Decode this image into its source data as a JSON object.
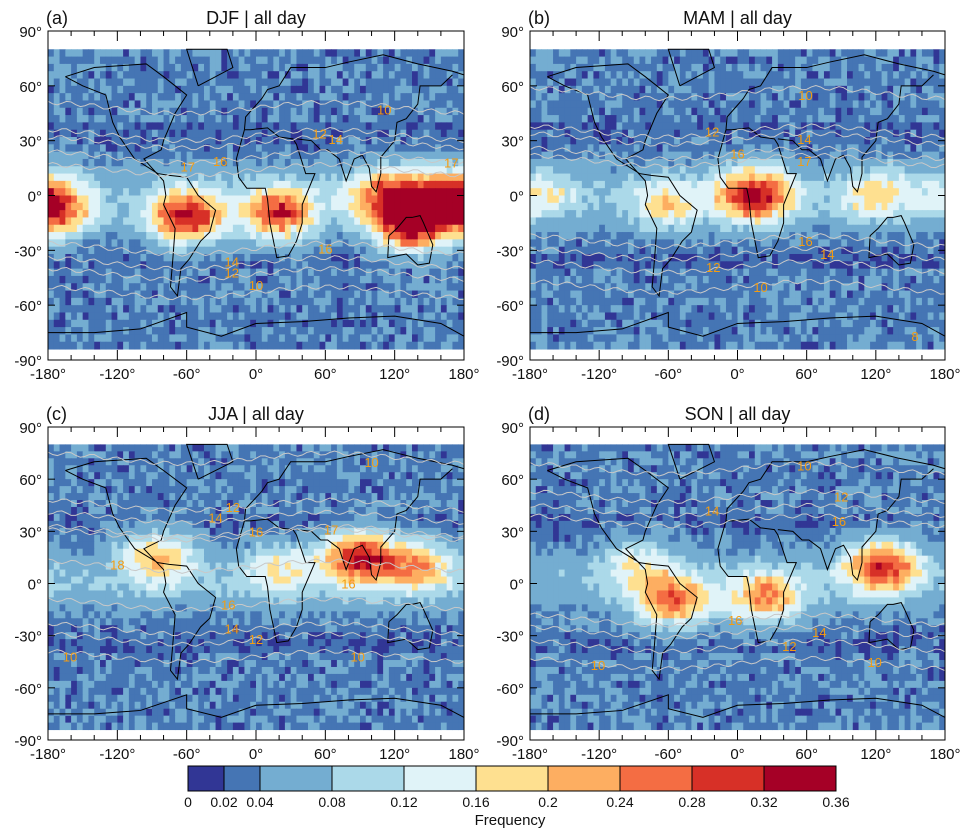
{
  "panels": [
    {
      "letter": "(a)",
      "title": "DJF | all day",
      "hotspots": [
        [
          -60,
          -12,
          0.3
        ],
        [
          20,
          -10,
          0.25
        ],
        [
          135,
          -15,
          0.34
        ],
        [
          -172,
          -8,
          0.22
        ],
        [
          160,
          0,
          0.22
        ],
        [
          110,
          0,
          0.2
        ]
      ],
      "contours": [
        [
          10,
          48
        ],
        [
          12,
          33
        ],
        [
          14,
          29
        ],
        [
          16,
          21
        ],
        [
          17,
          14
        ],
        [
          16,
          -29
        ],
        [
          14,
          -37
        ],
        [
          12,
          -43
        ],
        [
          10,
          -53
        ]
      ],
      "labels": [
        [
          "10",
          111,
          47
        ],
        [
          "12",
          55,
          34
        ],
        [
          "14",
          69,
          31
        ],
        [
          "16",
          -31,
          19
        ],
        [
          "17",
          -59,
          16
        ],
        [
          "17",
          169,
          18
        ],
        [
          "16",
          60,
          -29
        ],
        [
          "14",
          -21,
          -36
        ],
        [
          "12",
          -21,
          -42
        ],
        [
          "10",
          0,
          -49
        ]
      ]
    },
    {
      "letter": "(b)",
      "title": "MAM | all day",
      "hotspots": [
        [
          15,
          0,
          0.3
        ],
        [
          -60,
          -5,
          0.13
        ],
        [
          120,
          0,
          0.13
        ],
        [
          -170,
          0,
          0.1
        ]
      ],
      "contours": [
        [
          10,
          56
        ],
        [
          12,
          35
        ],
        [
          14,
          31
        ],
        [
          16,
          23
        ],
        [
          17,
          19
        ],
        [
          16,
          -25
        ],
        [
          14,
          -32
        ],
        [
          12,
          -39
        ],
        [
          10,
          -50
        ]
      ],
      "labels": [
        [
          "10",
          59,
          55
        ],
        [
          "12",
          -22,
          35
        ],
        [
          "14",
          58,
          31
        ],
        [
          "16",
          0,
          23
        ],
        [
          "17",
          58,
          19
        ],
        [
          "16",
          59,
          -25
        ],
        [
          "14",
          78,
          -32
        ],
        [
          "12",
          -21,
          -39
        ],
        [
          "10",
          20,
          -50
        ],
        [
          "8",
          154,
          -77
        ]
      ]
    },
    {
      "letter": "(c)",
      "title": "JJA | all day",
      "hotspots": [
        [
          90,
          15,
          0.3
        ],
        [
          -85,
          15,
          0.18
        ],
        [
          20,
          8,
          0.12
        ],
        [
          140,
          10,
          0.18
        ]
      ],
      "contours": [
        [
          10,
          72
        ],
        [
          12,
          45
        ],
        [
          14,
          38
        ],
        [
          16,
          30
        ],
        [
          17,
          28
        ],
        [
          18,
          10
        ],
        [
          16,
          -12
        ],
        [
          14,
          -26
        ],
        [
          12,
          -32
        ],
        [
          10,
          -42
        ]
      ],
      "labels": [
        [
          "10",
          100,
          70
        ],
        [
          "12",
          -20,
          44
        ],
        [
          "14",
          -35,
          38
        ],
        [
          "16",
          0,
          30
        ],
        [
          "17",
          65,
          31
        ],
        [
          "16",
          80,
          0
        ],
        [
          "18",
          -120,
          11
        ],
        [
          "16",
          -24,
          -12
        ],
        [
          "14",
          -21,
          -26
        ],
        [
          "12",
          0,
          -32
        ],
        [
          "10",
          88,
          -42
        ],
        [
          "10",
          -161,
          -42
        ]
      ]
    },
    {
      "letter": "(d)",
      "title": "SON | all day",
      "hotspots": [
        [
          -55,
          -10,
          0.22
        ],
        [
          25,
          -8,
          0.2
        ],
        [
          125,
          10,
          0.28
        ],
        [
          -85,
          10,
          0.12
        ]
      ],
      "contours": [
        [
          10,
          66
        ],
        [
          12,
          50
        ],
        [
          14,
          42
        ],
        [
          16,
          36
        ],
        [
          16,
          -21
        ],
        [
          14,
          -28
        ],
        [
          12,
          -36
        ],
        [
          10,
          -46
        ]
      ],
      "labels": [
        [
          "10",
          58,
          68
        ],
        [
          "12",
          90,
          50
        ],
        [
          "14",
          -22,
          42
        ],
        [
          "16",
          88,
          36
        ],
        [
          "16",
          -2,
          -21
        ],
        [
          "14",
          71,
          -28
        ],
        [
          "12",
          45,
          -36
        ],
        [
          "10",
          -121,
          -47
        ],
        [
          "10",
          119,
          -45
        ]
      ]
    }
  ],
  "axes": {
    "lat_ticks": [
      "90°",
      "60°",
      "30°",
      "0°",
      "-30°",
      "-60°",
      "-90°"
    ],
    "lon_ticks": [
      "-180°",
      "-120°",
      "-60°",
      "0°",
      "60°",
      "120°",
      "180°"
    ]
  },
  "colorbar": {
    "label": "Frequency",
    "bounds": [
      "0",
      "0.02",
      "0.04",
      "0.08",
      "0.12",
      "0.16",
      "0.2",
      "0.24",
      "0.28",
      "0.32",
      "0.36"
    ],
    "colors": [
      "#313695",
      "#4575b4",
      "#74add1",
      "#abd9e9",
      "#e0f3f8",
      "#fee090",
      "#fdae61",
      "#f46d43",
      "#d73027",
      "#a50026"
    ]
  },
  "contour_color": "#c8c8c8",
  "label_color": "#f39c12"
}
